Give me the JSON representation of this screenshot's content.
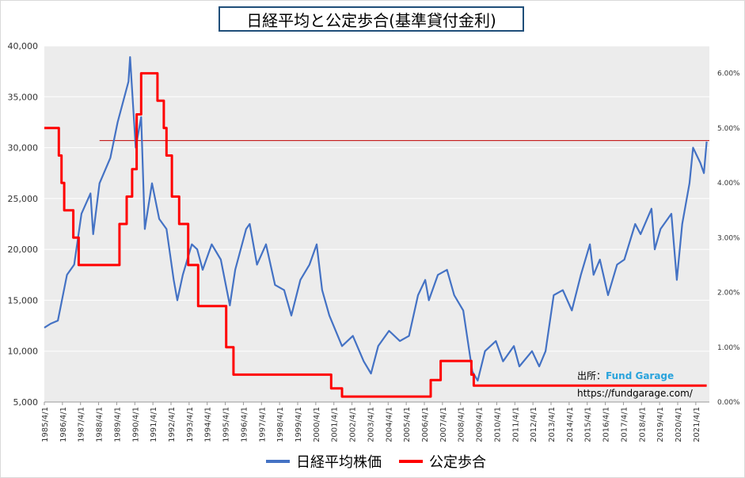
{
  "title": "日経平均と公定歩合(基準貸付金利)",
  "credit": {
    "label": "出所：",
    "brand": "Fund Garage",
    "url": "https://fundgarage.com/"
  },
  "legend": [
    {
      "name": "日経平均株価",
      "color": "#4472c4"
    },
    {
      "name": "公定歩合",
      "color": "#ff0000"
    }
  ],
  "chart_data": {
    "type": "line",
    "title": "日経平均と公定歩合(基準貸付金利)",
    "x_tick_labels": [
      "1985/4/1",
      "1986/4/1",
      "1987/4/1",
      "1988/4/1",
      "1989/4/1",
      "1990/4/1",
      "1991/4/1",
      "1992/4/1",
      "1993/4/1",
      "1994/4/1",
      "1995/4/1",
      "1996/4/1",
      "1997/4/1",
      "1998/4/1",
      "1999/4/1",
      "2000/4/1",
      "2001/4/1",
      "2002/4/1",
      "2003/4/1",
      "2004/4/1",
      "2005/4/1",
      "2006/4/1",
      "2007/4/1",
      "2008/4/1",
      "2009/4/1",
      "2010/4/1",
      "2011/4/1",
      "2012/4/1",
      "2013/4/1",
      "2014/4/1",
      "2015/4/1",
      "2016/4/1",
      "2017/4/1",
      "2018/4/1",
      "2019/4/1",
      "2020/4/1",
      "2021/4/1"
    ],
    "xlim": [
      1985.25,
      2022.0
    ],
    "y_left": {
      "ticks": [
        "5,000",
        "10,000",
        "15,000",
        "20,000",
        "25,000",
        "30,000",
        "35,000",
        "40,000"
      ],
      "ylim": [
        5000,
        40000
      ]
    },
    "y_right": {
      "ticks": [
        "0.00%",
        "1.00%",
        "2.00%",
        "3.00%",
        "4.00%",
        "5.00%",
        "6.00%"
      ],
      "ylim": [
        0,
        6.5
      ]
    },
    "grid": true,
    "legend_position": "bottom",
    "reference_line": {
      "year_start": 1988.3,
      "value": 30700,
      "axis": "left"
    },
    "series": [
      {
        "name": "日経平均株価",
        "axis": "left",
        "points": [
          [
            1985.25,
            12300
          ],
          [
            1985.6,
            12700
          ],
          [
            1986.0,
            13000
          ],
          [
            1986.5,
            17500
          ],
          [
            1986.9,
            18500
          ],
          [
            1987.3,
            23500
          ],
          [
            1987.8,
            25500
          ],
          [
            1987.95,
            21500
          ],
          [
            1988.3,
            26500
          ],
          [
            1988.9,
            29000
          ],
          [
            1989.3,
            32500
          ],
          [
            1989.9,
            36500
          ],
          [
            1989.99,
            38900
          ],
          [
            1990.3,
            30000
          ],
          [
            1990.6,
            33000
          ],
          [
            1990.8,
            22000
          ],
          [
            1991.2,
            26500
          ],
          [
            1991.6,
            23000
          ],
          [
            1992.0,
            22000
          ],
          [
            1992.4,
            17000
          ],
          [
            1992.6,
            15000
          ],
          [
            1992.9,
            17500
          ],
          [
            1993.4,
            20500
          ],
          [
            1993.7,
            20000
          ],
          [
            1994.0,
            18000
          ],
          [
            1994.5,
            20500
          ],
          [
            1995.0,
            19000
          ],
          [
            1995.5,
            14500
          ],
          [
            1995.8,
            18000
          ],
          [
            1996.4,
            22000
          ],
          [
            1996.6,
            22500
          ],
          [
            1997.0,
            18500
          ],
          [
            1997.5,
            20500
          ],
          [
            1998.0,
            16500
          ],
          [
            1998.5,
            16000
          ],
          [
            1998.9,
            13500
          ],
          [
            1999.4,
            17000
          ],
          [
            1999.9,
            18500
          ],
          [
            2000.3,
            20500
          ],
          [
            2000.6,
            16000
          ],
          [
            2001.0,
            13500
          ],
          [
            2001.7,
            10500
          ],
          [
            2002.3,
            11500
          ],
          [
            2002.9,
            9000
          ],
          [
            2003.3,
            7800
          ],
          [
            2003.7,
            10500
          ],
          [
            2004.3,
            12000
          ],
          [
            2004.9,
            11000
          ],
          [
            2005.4,
            11500
          ],
          [
            2005.9,
            15500
          ],
          [
            2006.3,
            17000
          ],
          [
            2006.5,
            15000
          ],
          [
            2007.0,
            17500
          ],
          [
            2007.5,
            18000
          ],
          [
            2007.9,
            15500
          ],
          [
            2008.4,
            14000
          ],
          [
            2008.9,
            8000
          ],
          [
            2009.2,
            7100
          ],
          [
            2009.6,
            10000
          ],
          [
            2010.2,
            11000
          ],
          [
            2010.6,
            9000
          ],
          [
            2011.2,
            10500
          ],
          [
            2011.5,
            8500
          ],
          [
            2012.2,
            10000
          ],
          [
            2012.6,
            8500
          ],
          [
            2012.95,
            10000
          ],
          [
            2013.4,
            15500
          ],
          [
            2013.9,
            16000
          ],
          [
            2014.4,
            14000
          ],
          [
            2014.9,
            17500
          ],
          [
            2015.4,
            20500
          ],
          [
            2015.6,
            17500
          ],
          [
            2015.95,
            19000
          ],
          [
            2016.4,
            15500
          ],
          [
            2016.9,
            18500
          ],
          [
            2017.3,
            19000
          ],
          [
            2017.9,
            22500
          ],
          [
            2018.2,
            21500
          ],
          [
            2018.8,
            24000
          ],
          [
            2018.98,
            20000
          ],
          [
            2019.3,
            22000
          ],
          [
            2019.9,
            23500
          ],
          [
            2020.2,
            17000
          ],
          [
            2020.5,
            22500
          ],
          [
            2020.9,
            26500
          ],
          [
            2021.1,
            30000
          ],
          [
            2021.5,
            28500
          ],
          [
            2021.7,
            27500
          ],
          [
            2021.85,
            30600
          ]
        ]
      },
      {
        "name": "公定歩合",
        "axis": "right",
        "points": [
          [
            1985.25,
            5.0
          ],
          [
            1986.05,
            5.0
          ],
          [
            1986.05,
            4.5
          ],
          [
            1986.2,
            4.5
          ],
          [
            1986.2,
            4.0
          ],
          [
            1986.35,
            4.0
          ],
          [
            1986.35,
            3.5
          ],
          [
            1986.85,
            3.5
          ],
          [
            1986.85,
            3.0
          ],
          [
            1987.15,
            3.0
          ],
          [
            1987.15,
            2.5
          ],
          [
            1989.4,
            2.5
          ],
          [
            1989.4,
            3.25
          ],
          [
            1989.8,
            3.25
          ],
          [
            1989.8,
            3.75
          ],
          [
            1990.1,
            3.75
          ],
          [
            1990.1,
            4.25
          ],
          [
            1990.35,
            4.25
          ],
          [
            1990.35,
            5.25
          ],
          [
            1990.6,
            5.25
          ],
          [
            1990.6,
            6.0
          ],
          [
            1991.5,
            6.0
          ],
          [
            1991.5,
            5.5
          ],
          [
            1991.85,
            5.5
          ],
          [
            1991.85,
            5.0
          ],
          [
            1992.0,
            5.0
          ],
          [
            1992.0,
            4.5
          ],
          [
            1992.3,
            4.5
          ],
          [
            1992.3,
            3.75
          ],
          [
            1992.7,
            3.75
          ],
          [
            1992.7,
            3.25
          ],
          [
            1993.2,
            3.25
          ],
          [
            1993.2,
            2.5
          ],
          [
            1993.75,
            2.5
          ],
          [
            1993.75,
            1.75
          ],
          [
            1995.3,
            1.75
          ],
          [
            1995.3,
            1.0
          ],
          [
            1995.7,
            1.0
          ],
          [
            1995.7,
            0.5
          ],
          [
            2001.1,
            0.5
          ],
          [
            2001.1,
            0.25
          ],
          [
            2001.7,
            0.25
          ],
          [
            2001.7,
            0.1
          ],
          [
            2006.6,
            0.1
          ],
          [
            2006.6,
            0.4
          ],
          [
            2007.15,
            0.4
          ],
          [
            2007.15,
            0.75
          ],
          [
            2008.85,
            0.75
          ],
          [
            2008.85,
            0.5
          ],
          [
            2008.98,
            0.5
          ],
          [
            2008.98,
            0.3
          ],
          [
            2021.85,
            0.3
          ]
        ]
      }
    ]
  }
}
